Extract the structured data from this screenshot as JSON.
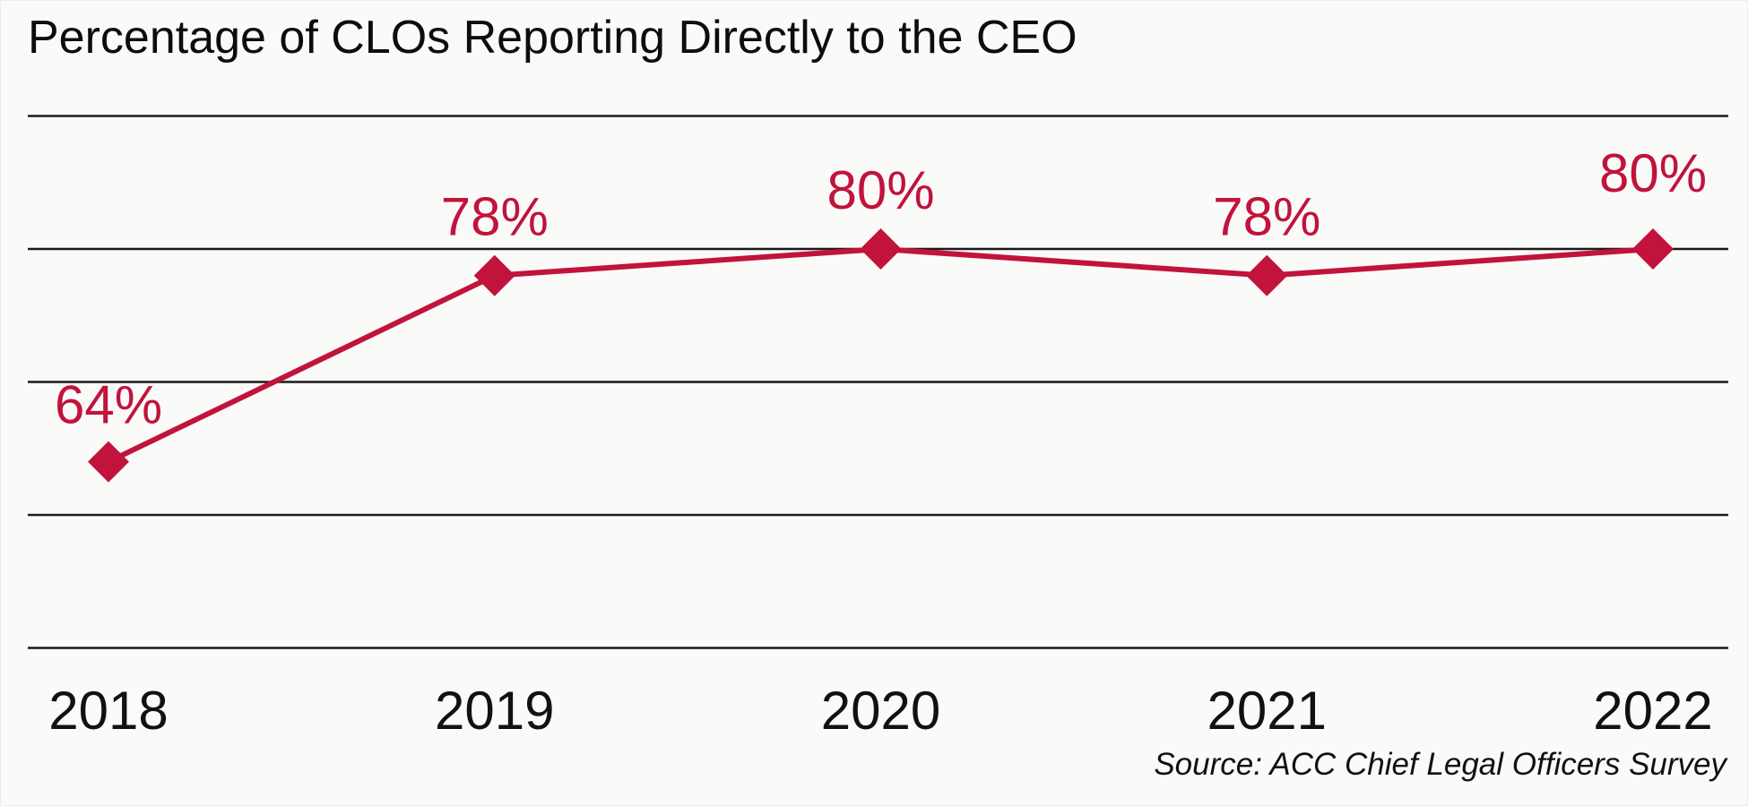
{
  "header": {
    "title": "Percentage of CLOs Reporting Directly to the CEO"
  },
  "footer": {
    "source_note": "Source: ACC Chief Legal Officers Survey"
  },
  "colors": {
    "accent": "#C1133B",
    "text": "#111111",
    "grid": "#1a1a1a",
    "background": "#fafaf9"
  },
  "chart_data": {
    "type": "line",
    "title": "Percentage of CLOs Reporting Directly to the CEO",
    "categories": [
      "2018",
      "2019",
      "2020",
      "2021",
      "2022"
    ],
    "series": [
      {
        "name": "CLOs reporting directly to CEO",
        "values": [
          64,
          78,
          80,
          78,
          80
        ]
      }
    ],
    "data_labels": [
      "64%",
      "78%",
      "80%",
      "78%",
      "80%"
    ],
    "xlabel": "",
    "ylabel": "",
    "ylim": [
      40,
      95
    ],
    "y_gridlines": [
      90,
      80,
      70,
      60,
      50
    ],
    "grid": "horizontal-only",
    "legend": "none",
    "marker": "diamond",
    "line_color": "#C1133B",
    "label_color": "#C1133B",
    "label_offsets": [
      -64,
      -66,
      -66,
      -66,
      -85
    ],
    "source": "Source: ACC Chief Legal Officers Survey"
  }
}
